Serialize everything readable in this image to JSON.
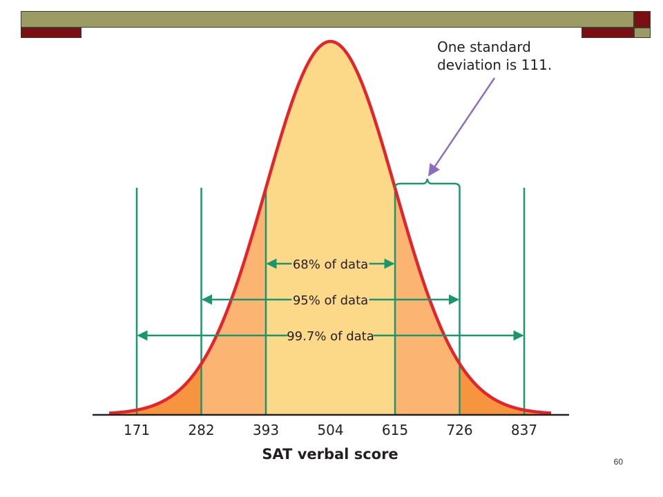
{
  "slide": {
    "page_number": "60",
    "colors": {
      "banner_olive": "#9d9b64",
      "banner_maroon": "#7b0f14",
      "banner_outline": "#3a3a2a"
    }
  },
  "chart_data": {
    "type": "area",
    "title": "",
    "xlabel": "SAT verbal score",
    "ylabel": "",
    "distribution": "normal",
    "mean": 504,
    "standard_deviation": 111,
    "xlim": [
      130,
      880
    ],
    "x_ticks": [
      "171",
      "282",
      "393",
      "504",
      "615",
      "726",
      "837"
    ],
    "tick_values": [
      171,
      282,
      393,
      504,
      615,
      726,
      837
    ],
    "bands": [
      {
        "label": "68% of data",
        "from": 393,
        "to": 615,
        "color": "#fcd889"
      },
      {
        "label": "95% of data",
        "from": 282,
        "to": 726,
        "color": "#fbb472"
      },
      {
        "label": "99.7% of data",
        "from": 171,
        "to": 837,
        "color": "#f79440"
      }
    ],
    "annotation": {
      "lines": [
        "One standard",
        "deviation is 111."
      ],
      "from": 615,
      "to": 726
    },
    "colors": {
      "curve": "#e3242b",
      "guides": "#17976b",
      "arrow": "#8b6fbf",
      "axis": "#231f20"
    },
    "grid": false,
    "legend": "none"
  }
}
